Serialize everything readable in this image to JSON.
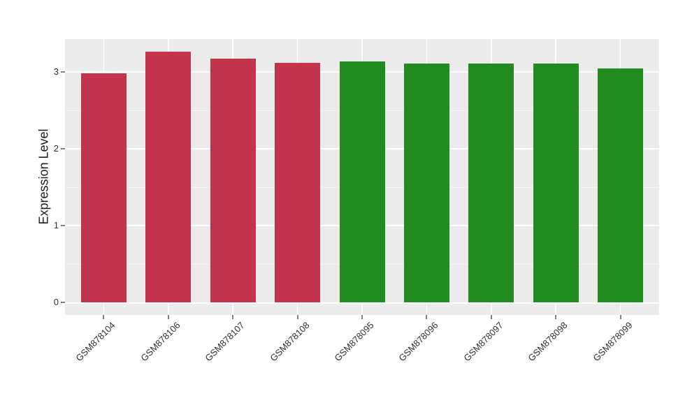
{
  "chart_data": {
    "type": "bar",
    "title": "",
    "xlabel": "",
    "ylabel": "Expression Level",
    "categories": [
      "GSM878104",
      "GSM878106",
      "GSM878107",
      "GSM878108",
      "GSM878095",
      "GSM878096",
      "GSM878097",
      "GSM878098",
      "GSM878099"
    ],
    "values": [
      2.98,
      3.26,
      3.17,
      3.12,
      3.14,
      3.11,
      3.11,
      3.11,
      3.05
    ],
    "bar_colors": [
      "#C2334D",
      "#C2334D",
      "#C2334D",
      "#C2334D",
      "#228B22",
      "#228B22",
      "#228B22",
      "#228B22",
      "#228B22"
    ],
    "group_colors": {
      "left_group_red": "#C2334D",
      "right_group_green": "#228B22"
    },
    "y_ticks": [
      0,
      1,
      2,
      3
    ],
    "y_minor_ticks": [
      0.5,
      1.5,
      2.5
    ],
    "ylim": [
      -0.17,
      3.43
    ],
    "grid": true,
    "legend_position": "none",
    "x_label_angle_deg": 45,
    "panel_background": "#EBEBEB",
    "gridline_color": "#FFFFFF",
    "axis_text_color": "#303030",
    "tick_color": "#808080"
  }
}
